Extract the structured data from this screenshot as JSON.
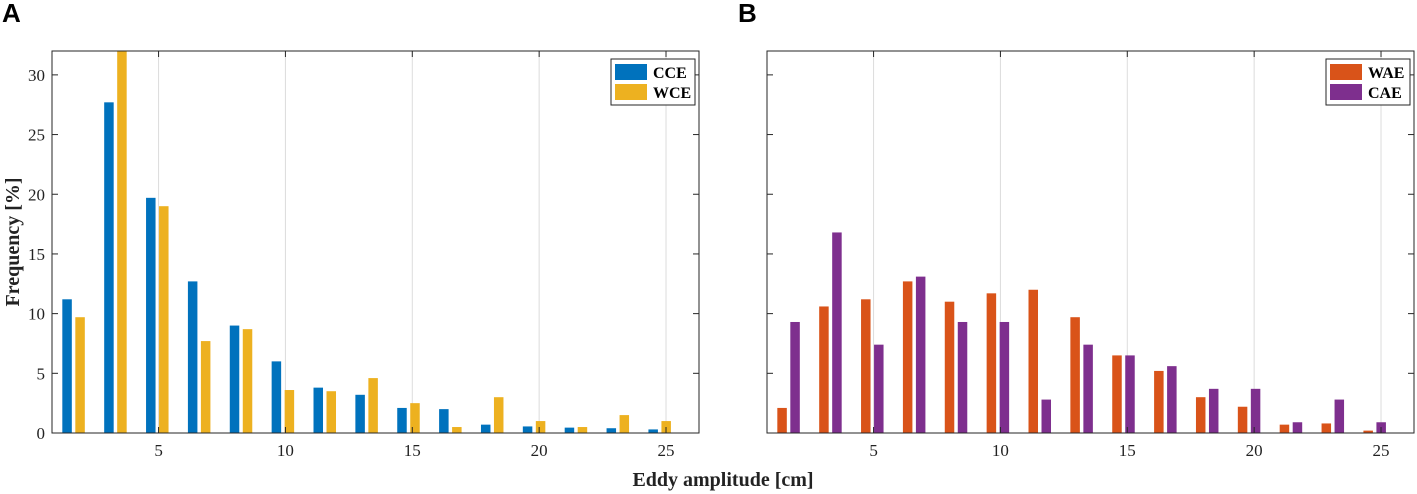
{
  "chart_data": {
    "xlabel": "Eddy amplitude [cm]",
    "ylabel": "Frequency [%]",
    "panels": [
      {
        "label": "A",
        "type": "bar",
        "x": [
          1.65,
          3.3,
          4.95,
          6.6,
          8.25,
          9.9,
          11.55,
          13.2,
          14.85,
          16.5,
          18.15,
          19.8,
          21.45,
          23.1,
          24.75
        ],
        "series": [
          {
            "name": "CCE",
            "color": "#0072BD",
            "values": [
              11.2,
              27.7,
              19.7,
              12.7,
              9.0,
              6.0,
              3.8,
              3.2,
              2.1,
              2.0,
              0.7,
              0.55,
              0.45,
              0.4,
              0.3
            ]
          },
          {
            "name": "WCE",
            "color": "#EDB120",
            "values": [
              9.7,
              32.0,
              19.0,
              7.7,
              8.7,
              3.6,
              3.5,
              4.6,
              2.5,
              0.5,
              3.0,
              1.0,
              0.5,
              1.5,
              1.0
            ]
          }
        ],
        "xticks": [
          5,
          10,
          15,
          20,
          25
        ],
        "yticks": [
          0,
          5,
          10,
          15,
          20,
          25,
          30
        ],
        "xlim": [
          0.8,
          26.3
        ],
        "ylim": [
          0,
          32
        ],
        "show_ylabels": true,
        "legend_position": "top-right",
        "grid": "x"
      },
      {
        "label": "B",
        "type": "bar",
        "x": [
          1.65,
          3.3,
          4.95,
          6.6,
          8.25,
          9.9,
          11.55,
          13.2,
          14.85,
          16.5,
          18.15,
          19.8,
          21.45,
          23.1,
          24.75
        ],
        "series": [
          {
            "name": "WAE",
            "color": "#D95319",
            "values": [
              2.1,
              10.6,
              11.2,
              12.7,
              11.0,
              11.7,
              12.0,
              9.7,
              6.5,
              5.2,
              3.0,
              2.2,
              0.7,
              0.8,
              0.2
            ]
          },
          {
            "name": "CAE",
            "color": "#7E2F8E",
            "values": [
              9.3,
              16.8,
              7.4,
              13.1,
              9.3,
              9.3,
              2.8,
              7.4,
              6.5,
              5.6,
              3.7,
              3.7,
              0.9,
              2.8,
              0.9
            ]
          }
        ],
        "xticks": [
          5,
          10,
          15,
          20,
          25
        ],
        "yticks": [
          0,
          5,
          10,
          15,
          20,
          25,
          30
        ],
        "xlim": [
          0.8,
          26.3
        ],
        "ylim": [
          0,
          32
        ],
        "show_ylabels": false,
        "legend_position": "top-right",
        "grid": "x"
      }
    ]
  }
}
